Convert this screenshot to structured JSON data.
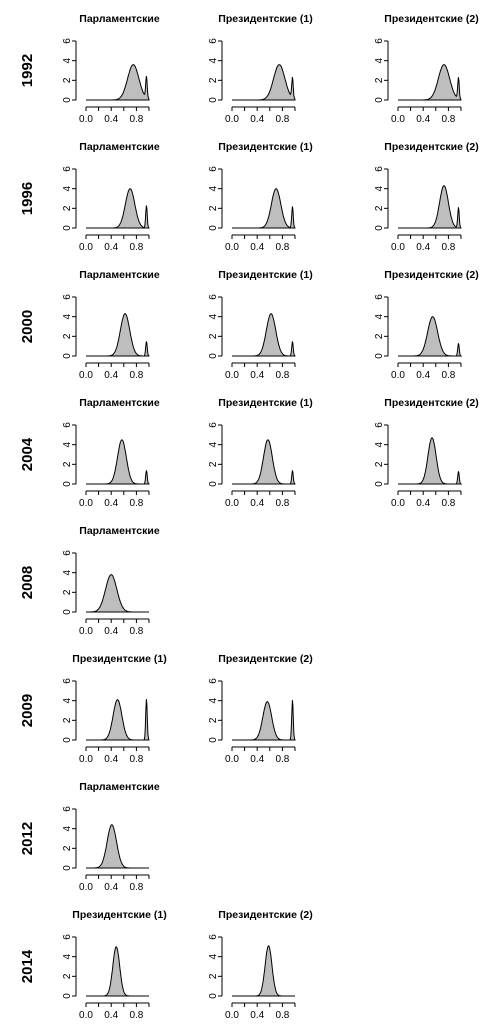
{
  "chart_data": {
    "type": "area",
    "x_ticks": [
      "0.0",
      "0.4",
      "0.8"
    ],
    "y_ticks": [
      "0",
      "2",
      "4",
      "6"
    ],
    "xlim": [
      0,
      1
    ],
    "ylim": [
      0,
      6
    ],
    "rows": [
      {
        "year": "1992",
        "panels": [
          {
            "col": 0,
            "title": "Парламентские",
            "peak_x": 0.75,
            "peak_y": 3.6,
            "sd": 0.09,
            "tail_h": 2.2,
            "tail_x": 0.96
          },
          {
            "col": 1,
            "title": "Президентские (1)",
            "peak_x": 0.75,
            "peak_y": 3.6,
            "sd": 0.09,
            "tail_h": 2.1,
            "tail_x": 0.96
          },
          {
            "col": 2,
            "title": "Президентские (2)",
            "peak_x": 0.73,
            "peak_y": 3.6,
            "sd": 0.09,
            "tail_h": 2.2,
            "tail_x": 0.96
          }
        ]
      },
      {
        "year": "1996",
        "panels": [
          {
            "col": 0,
            "title": "Парламентские",
            "peak_x": 0.7,
            "peak_y": 4.0,
            "sd": 0.075,
            "tail_h": 2.3,
            "tail_x": 0.96
          },
          {
            "col": 1,
            "title": "Президентские (1)",
            "peak_x": 0.7,
            "peak_y": 4.0,
            "sd": 0.075,
            "tail_h": 2.2,
            "tail_x": 0.96
          },
          {
            "col": 2,
            "title": "Президентские (2)",
            "peak_x": 0.73,
            "peak_y": 4.3,
            "sd": 0.07,
            "tail_h": 2.1,
            "tail_x": 0.96
          }
        ]
      },
      {
        "year": "2000",
        "panels": [
          {
            "col": 0,
            "title": "Парламентские",
            "peak_x": 0.62,
            "peak_y": 4.3,
            "sd": 0.075,
            "tail_h": 1.5,
            "tail_x": 0.96
          },
          {
            "col": 1,
            "title": "Президентские (1)",
            "peak_x": 0.62,
            "peak_y": 4.3,
            "sd": 0.075,
            "tail_h": 1.5,
            "tail_x": 0.96
          },
          {
            "col": 2,
            "title": "Президентские (2)",
            "peak_x": 0.55,
            "peak_y": 4.0,
            "sd": 0.08,
            "tail_h": 1.3,
            "tail_x": 0.96
          }
        ]
      },
      {
        "year": "2004",
        "panels": [
          {
            "col": 0,
            "title": "Парламентские",
            "peak_x": 0.57,
            "peak_y": 4.5,
            "sd": 0.07,
            "tail_h": 1.4,
            "tail_x": 0.96
          },
          {
            "col": 1,
            "title": "Президентские (1)",
            "peak_x": 0.57,
            "peak_y": 4.5,
            "sd": 0.07,
            "tail_h": 1.4,
            "tail_x": 0.96
          },
          {
            "col": 2,
            "title": "Президентские (2)",
            "peak_x": 0.54,
            "peak_y": 4.7,
            "sd": 0.065,
            "tail_h": 1.3,
            "tail_x": 0.96
          }
        ]
      },
      {
        "year": "2008",
        "panels": [
          {
            "col": 0,
            "title": "Парламентские",
            "peak_x": 0.4,
            "peak_y": 3.8,
            "sd": 0.09,
            "tail_h": 0,
            "tail_x": 0.96
          }
        ]
      },
      {
        "year": "2009",
        "panels": [
          {
            "col": 0,
            "title": "Президентские (1)",
            "peak_x": 0.5,
            "peak_y": 4.1,
            "sd": 0.07,
            "tail_h": 4.2,
            "tail_x": 0.96
          },
          {
            "col": 1,
            "title": "Президентские (2)",
            "peak_x": 0.56,
            "peak_y": 3.9,
            "sd": 0.07,
            "tail_h": 4.1,
            "tail_x": 0.96
          }
        ]
      },
      {
        "year": "2012",
        "panels": [
          {
            "col": 0,
            "title": "Парламентские",
            "peak_x": 0.41,
            "peak_y": 4.4,
            "sd": 0.075,
            "tail_h": 0,
            "tail_x": 0.96
          }
        ]
      },
      {
        "year": "2014",
        "panels": [
          {
            "col": 0,
            "title": "Президентские (1)",
            "peak_x": 0.48,
            "peak_y": 5.0,
            "sd": 0.055,
            "tail_h": 0,
            "tail_x": 0.96
          },
          {
            "col": 1,
            "title": "Президентские (2)",
            "peak_x": 0.58,
            "peak_y": 5.1,
            "sd": 0.055,
            "tail_h": 0,
            "tail_x": 0.96
          }
        ]
      }
    ]
  }
}
